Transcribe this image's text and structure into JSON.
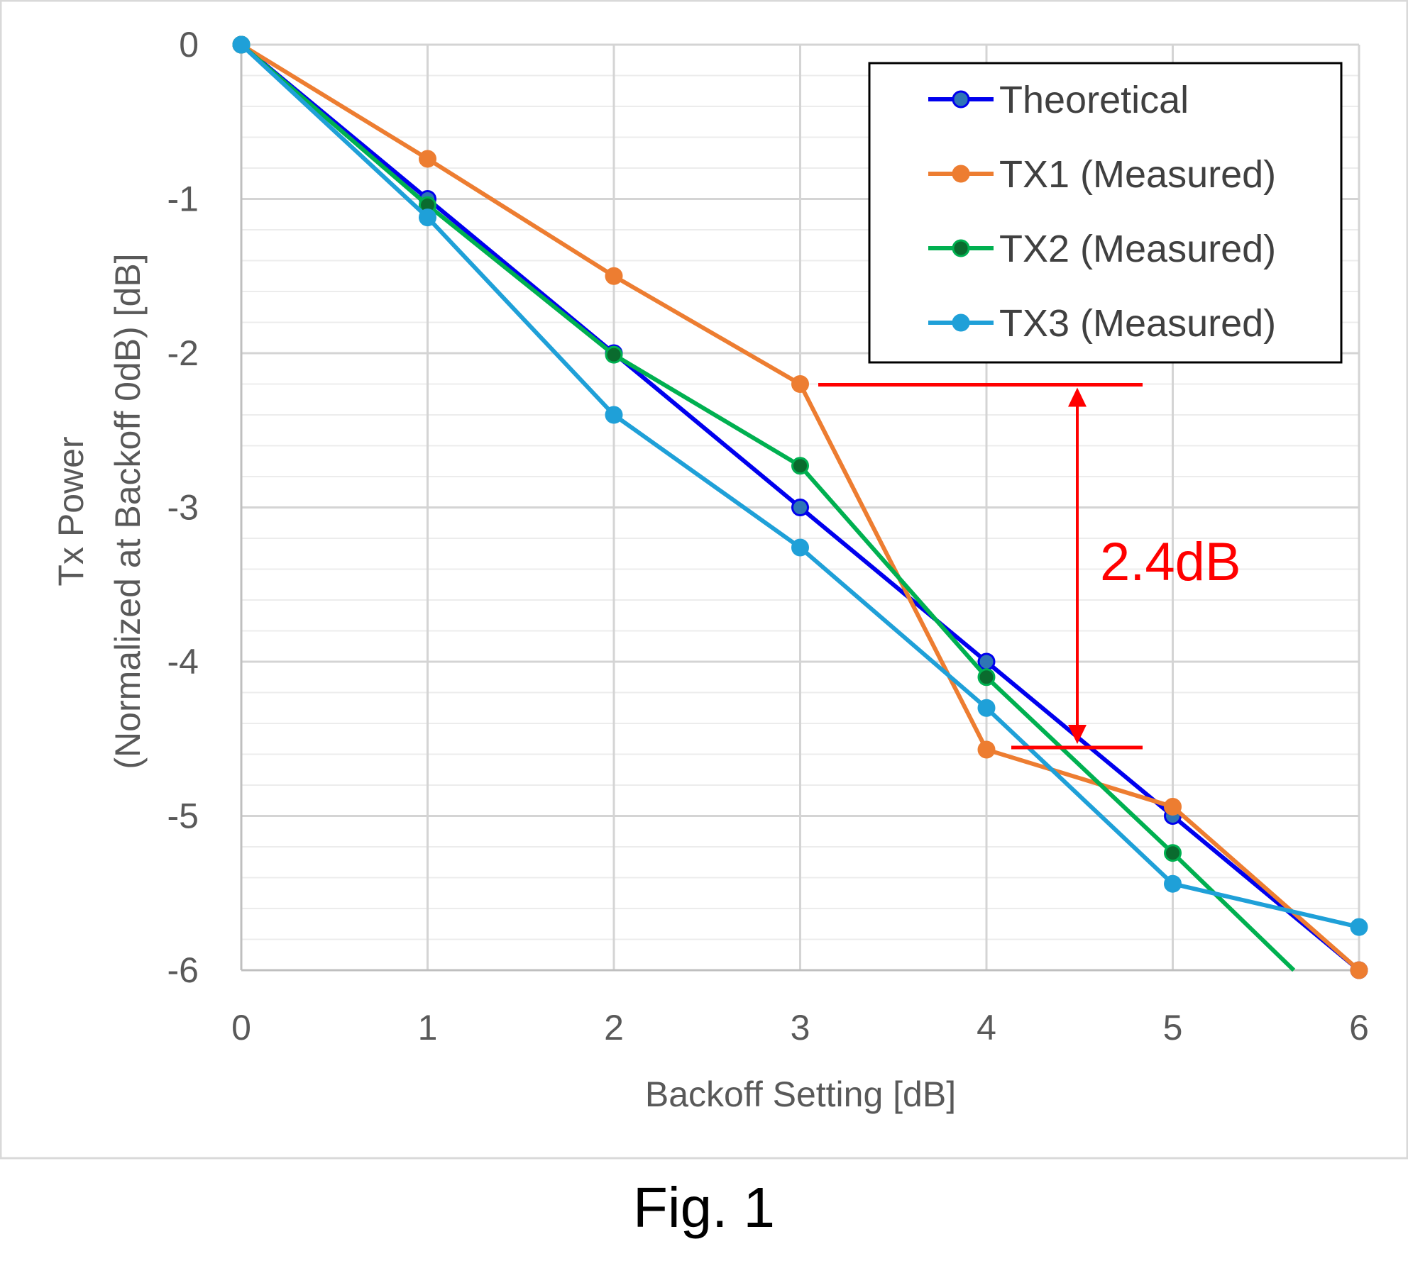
{
  "caption": "Fig. 1",
  "chart_data": {
    "type": "line",
    "title": "",
    "xlabel": "Backoff Setting [dB]",
    "ylabel_lines": [
      "Tx Power",
      "(Normalized at Backoff 0dB) [dB]"
    ],
    "xlim": [
      0,
      6
    ],
    "ylim": [
      -6,
      0
    ],
    "x_ticks": [
      0,
      1,
      2,
      3,
      4,
      5,
      6
    ],
    "y_ticks": [
      0,
      -1,
      -2,
      -3,
      -4,
      -5,
      -6
    ],
    "y_minor_step": 0.2,
    "grid": true,
    "legend_position": "top-right",
    "series": [
      {
        "name": "Theoretical",
        "color": "#0000ee",
        "marker_fill": "#2e75b6",
        "x": [
          0,
          1,
          2,
          3,
          4,
          5,
          6
        ],
        "y": [
          0,
          -1,
          -2,
          -3,
          -4,
          -5,
          -6
        ]
      },
      {
        "name": "TX1 (Measured)",
        "color": "#ed7d31",
        "marker_fill": "#ed7d31",
        "x": [
          0,
          1,
          2,
          3,
          4,
          5,
          6
        ],
        "y": [
          0,
          -0.74,
          -1.5,
          -2.2,
          -4.57,
          -4.94,
          -6.0
        ]
      },
      {
        "name": "TX2 (Measured)",
        "color": "#00b050",
        "marker_fill": "#0a6b2e",
        "x": [
          0,
          1,
          2,
          3,
          4,
          5,
          5.65
        ],
        "y": [
          0,
          -1.04,
          -2.01,
          -2.73,
          -4.1,
          -5.24,
          -6.0
        ],
        "marker_count": 6
      },
      {
        "name": "TX3 (Measured)",
        "color": "#1fa0d8",
        "marker_fill": "#1fa0d8",
        "x": [
          0,
          1,
          2,
          3,
          4,
          5,
          6
        ],
        "y": [
          0,
          -1.12,
          -2.4,
          -3.26,
          -4.3,
          -5.44,
          -5.72
        ]
      }
    ],
    "annotation": {
      "label": "2.4dB",
      "color": "#ff0000",
      "upper_y": -2.2,
      "lower_y": -4.57
    }
  }
}
